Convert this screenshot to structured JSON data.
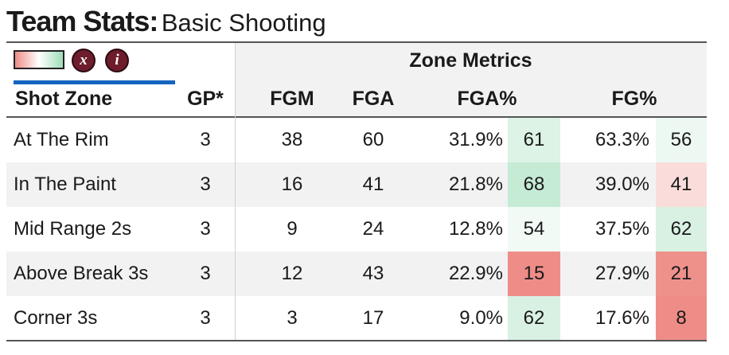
{
  "title": {
    "bold": "Team Stats:",
    "light": "Basic Shooting"
  },
  "controls": {
    "clear_label": "x",
    "info_label": "i"
  },
  "group_header": "Zone Metrics",
  "columns": {
    "zone": "Shot Zone",
    "gp": "GP*",
    "fgm": "FGM",
    "fga": "FGA",
    "fga_pct": "FGA%",
    "fg_pct": "FG%"
  },
  "colors": {
    "good": "#9fddb8",
    "bad": "#ee8d87",
    "accent": "#1565c0",
    "button": "#6d1d2c"
  },
  "rows": [
    {
      "zone": "At The Rim",
      "gp": "3",
      "fgm": "38",
      "fga": "60",
      "fga_pct": "31.9%",
      "fga_rank": "61",
      "fg_pct": "63.3%",
      "fg_rank": "56"
    },
    {
      "zone": "In The Paint",
      "gp": "3",
      "fgm": "16",
      "fga": "41",
      "fga_pct": "21.8%",
      "fga_rank": "68",
      "fg_pct": "39.0%",
      "fg_rank": "41"
    },
    {
      "zone": "Mid Range 2s",
      "gp": "3",
      "fgm": "9",
      "fga": "24",
      "fga_pct": "12.8%",
      "fga_rank": "54",
      "fg_pct": "37.5%",
      "fg_rank": "62"
    },
    {
      "zone": "Above Break 3s",
      "gp": "3",
      "fgm": "12",
      "fga": "43",
      "fga_pct": "22.9%",
      "fga_rank": "15",
      "fg_pct": "27.9%",
      "fg_rank": "21"
    },
    {
      "zone": "Corner 3s",
      "gp": "3",
      "fgm": "3",
      "fga": "17",
      "fga_pct": "9.0%",
      "fga_rank": "62",
      "fg_pct": "17.6%",
      "fg_rank": "8"
    }
  ]
}
